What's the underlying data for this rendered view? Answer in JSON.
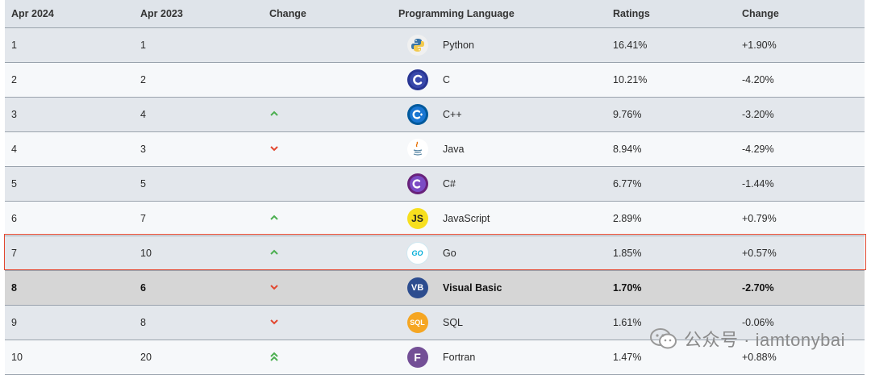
{
  "headers": [
    "Apr 2024",
    "Apr 2023",
    "Change",
    "Programming Language",
    "Ratings",
    "Change"
  ],
  "rows": [
    {
      "rank_2024": "1",
      "rank_2023": "1",
      "trend": "",
      "language": "Python",
      "rating": "16.41%",
      "change": "+1.90%",
      "logo": "python-icon"
    },
    {
      "rank_2024": "2",
      "rank_2023": "2",
      "trend": "",
      "language": "C",
      "rating": "10.21%",
      "change": "-4.20%",
      "logo": "c-language-icon"
    },
    {
      "rank_2024": "3",
      "rank_2023": "4",
      "trend": "up",
      "language": "C++",
      "rating": "9.76%",
      "change": "-3.20%",
      "logo": "cpp-icon"
    },
    {
      "rank_2024": "4",
      "rank_2023": "3",
      "trend": "down",
      "language": "Java",
      "rating": "8.94%",
      "change": "-4.29%",
      "logo": "java-icon"
    },
    {
      "rank_2024": "5",
      "rank_2023": "5",
      "trend": "",
      "language": "C#",
      "rating": "6.77%",
      "change": "-1.44%",
      "logo": "csharp-icon"
    },
    {
      "rank_2024": "6",
      "rank_2023": "7",
      "trend": "up",
      "language": "JavaScript",
      "rating": "2.89%",
      "change": "+0.79%",
      "logo": "javascript-icon"
    },
    {
      "rank_2024": "7",
      "rank_2023": "10",
      "trend": "up",
      "language": "Go",
      "rating": "1.85%",
      "change": "+0.57%",
      "logo": "go-icon"
    },
    {
      "rank_2024": "8",
      "rank_2023": "6",
      "trend": "down",
      "language": "Visual Basic",
      "rating": "1.70%",
      "change": "-2.70%",
      "logo": "visual-basic-icon"
    },
    {
      "rank_2024": "9",
      "rank_2023": "8",
      "trend": "down",
      "language": "SQL",
      "rating": "1.61%",
      "change": "-0.06%",
      "logo": "sql-icon"
    },
    {
      "rank_2024": "10",
      "rank_2023": "20",
      "trend": "double-up",
      "language": "Fortran",
      "rating": "1.47%",
      "change": "+0.88%",
      "logo": "fortran-icon"
    }
  ],
  "logo_text": {
    "javascript": "JS",
    "go": "GO",
    "visual_basic": "VB",
    "sql": "SQL",
    "fortran": "F",
    "java": "☕"
  },
  "colors": {
    "up": "#4caf50",
    "down": "#e2472f",
    "highlight_border": "#e2472f"
  },
  "watermark": {
    "text": "公众号 · iamtonybai",
    "icon": "wechat-icon"
  }
}
